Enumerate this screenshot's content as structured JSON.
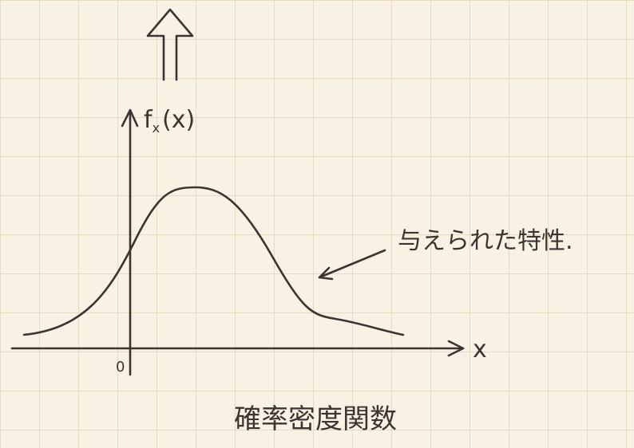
{
  "diagram": {
    "y_axis_label": {
      "main": "f",
      "subscript": "x",
      "argument": "(x)"
    },
    "origin_label": "0",
    "x_axis_label": "x",
    "annotation": "与えられた特性.",
    "caption": "確率密度関数"
  }
}
